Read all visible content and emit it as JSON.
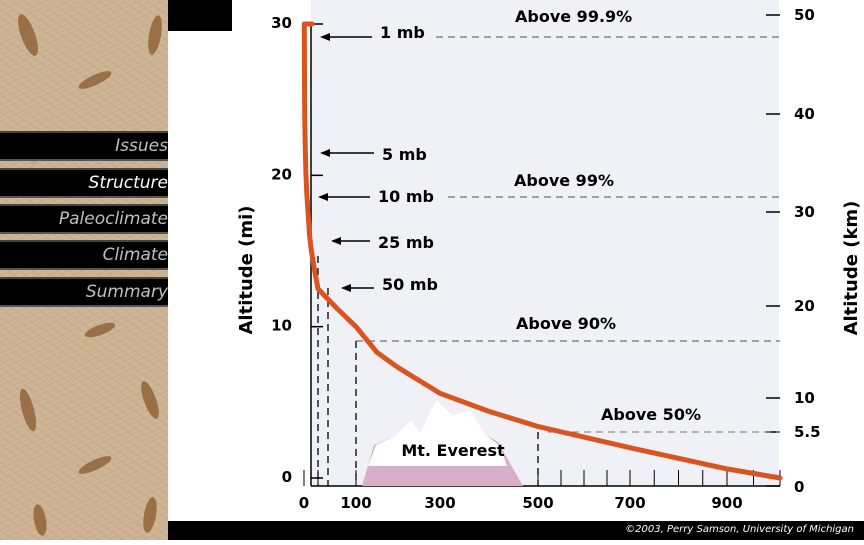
{
  "sidebar": {
    "items": [
      {
        "label": "Issues",
        "color": "#bfbfbf"
      },
      {
        "label": "Structure",
        "color": "#ffffff"
      },
      {
        "label": "Paleoclimate",
        "color": "#bfbfbf"
      },
      {
        "label": "Climate",
        "color": "#bfbfbf"
      },
      {
        "label": "Summary",
        "color": "#bfbfbf"
      }
    ]
  },
  "footer": {
    "copyright": "©2003, Perry Samson, University of Michigan"
  },
  "chart_data": {
    "type": "line",
    "y_left": {
      "label": "Altitude (mi)",
      "ticks": [
        "0",
        "10",
        "20",
        "30"
      ],
      "range": [
        0,
        30
      ]
    },
    "y_right": {
      "label": "Altitude (km)",
      "ticks": [
        "0",
        "5.5",
        "10",
        "20",
        "30",
        "40",
        "50"
      ]
    },
    "x": {
      "ticks": [
        "0",
        "100",
        "300",
        "500",
        "700",
        "900"
      ],
      "range": [
        0,
        1000
      ]
    },
    "series": [
      {
        "color": "#d9541e",
        "points": [
          [
            1000,
            0
          ],
          [
            900,
            0.6
          ],
          [
            700,
            2.0
          ],
          [
            500,
            3.4
          ],
          [
            400,
            4.4
          ],
          [
            300,
            5.6
          ],
          [
            200,
            7.3
          ],
          [
            150,
            8.3
          ],
          [
            100,
            10.0
          ],
          [
            75,
            11.2
          ],
          [
            50,
            12.5
          ],
          [
            35,
            14.0
          ],
          [
            25,
            15.2
          ],
          [
            20,
            16.0
          ],
          [
            15,
            17.4
          ],
          [
            10,
            18.8
          ],
          [
            7,
            20.0
          ],
          [
            5,
            21.4
          ],
          [
            3,
            23.5
          ],
          [
            2,
            25.0
          ],
          [
            1,
            30.0
          ]
        ]
      }
    ],
    "pressure_labels": [
      {
        "text": "1 mb",
        "y": 30.0
      },
      {
        "text": "5 mb",
        "y": 21.4
      },
      {
        "text": "10 mb",
        "y": 18.8
      },
      {
        "text": "25 mb",
        "y": 15.2
      },
      {
        "text": "50 mb",
        "y": 12.5
      }
    ],
    "mass_annotations": [
      {
        "text": "Above 99.9%",
        "y": 30.0
      },
      {
        "text": "Above 99%",
        "y": 18.8
      },
      {
        "text": "Above 90%",
        "y": 10.0
      },
      {
        "text": "Above 50%",
        "y": 3.4
      }
    ],
    "mountain_label": "Mt. Everest",
    "colors": {
      "curve": "#d9541e",
      "plot_bg": "#f0f0f7",
      "mountain": "#d8aec8",
      "snow": "#ffffff"
    }
  }
}
